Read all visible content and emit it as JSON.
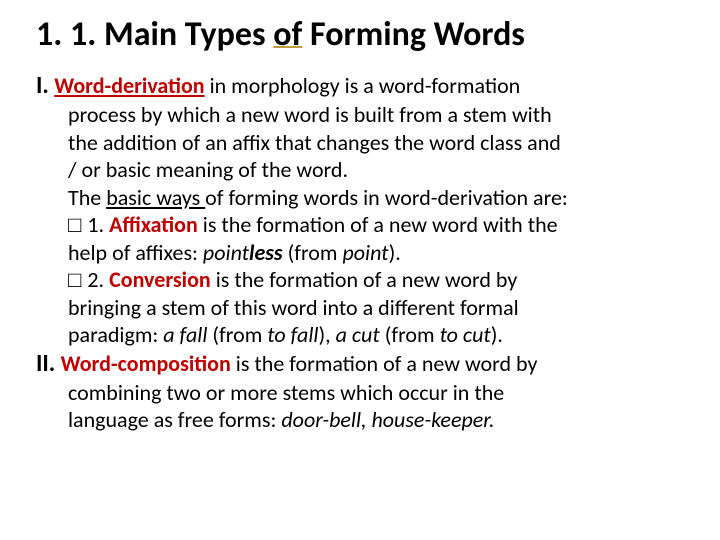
{
  "title_prefix": "1. 1. Main Types ",
  "title_underlined": "of",
  "title_suffix": " Forming Words",
  "roman1": "I. ",
  "term1": "Word-derivation",
  "p1a": " in morphology is a word-formation",
  "p1b": "process by which a new word is built from a stem with",
  "p1c": "the addition of an affix that changes the word class and",
  "p1d": "/ or basic meaning of the word.",
  "p1e_a": "The ",
  "p1e_u": "basic ways ",
  "p1e_b": "of forming words in word-derivation are:",
  "cb": "□ ",
  "n1": "1. ",
  "affixation": "Affixation",
  "aff_a": " is the formation of a new word with the",
  "aff_b_a": "help of affixes: ",
  "aff_ex1a": "point",
  "aff_ex1b": "less ",
  "aff_b_b": "(from ",
  "aff_ex2": "point",
  "aff_b_c": ").",
  "n2": "2. ",
  "conversion": "Conversion",
  "conv_a": " is the formation of a new word by",
  "conv_b": "bringing a stem of this word into a different formal",
  "conv_c_a": "paradigm: ",
  "conv_ex1": "a fall ",
  "conv_c_b": "(from ",
  "conv_ex2": "to fall",
  "conv_c_c": "), ",
  "conv_ex3": "a cut ",
  "conv_c_d": "(from ",
  "conv_ex4": "to cut",
  "conv_c_e": ").",
  "roman2": "II. ",
  "term2": "Word-composition",
  "wc_a": " is the formation of a new word by",
  "wc_b": "combining two or more stems which occur in the",
  "wc_c_a": "language as free forms: ",
  "wc_ex": "door-bell, house-keeper.",
  "colors": {
    "accent_underline": "#c09a3e",
    "red": "#c00000",
    "text": "#000000",
    "background": "#ffffff"
  },
  "fontsize": {
    "title": 34,
    "body": 22,
    "roman": 24
  }
}
